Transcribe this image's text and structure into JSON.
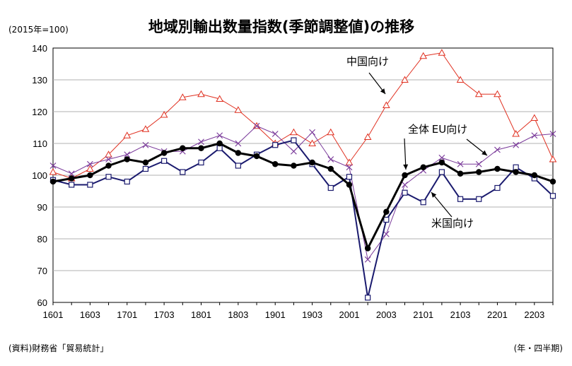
{
  "chart_data": {
    "type": "line",
    "title": "地域別輸出数量指数(季節調整値)の推移",
    "unit_note": "(2015年=100)",
    "source": "(資料)財務省「貿易統計」",
    "x_unit": "(年・四半期)",
    "ylim": [
      60,
      140
    ],
    "yticks": [
      60,
      70,
      80,
      90,
      100,
      110,
      120,
      130,
      140
    ],
    "grid": true,
    "categories": [
      "1601",
      "1602",
      "1603",
      "1604",
      "1701",
      "1702",
      "1703",
      "1704",
      "1801",
      "1802",
      "1803",
      "1804",
      "1901",
      "1902",
      "1903",
      "1904",
      "2001",
      "2002",
      "2003",
      "2004",
      "2101",
      "2102",
      "2103",
      "2104",
      "2201",
      "2202",
      "2203",
      "2204"
    ],
    "x_tick_labels": [
      "1601",
      "1603",
      "1701",
      "1703",
      "1801",
      "1803",
      "1901",
      "1903",
      "2001",
      "2003",
      "2101",
      "2103",
      "2201",
      "2203"
    ],
    "series": [
      {
        "name": "中国向け",
        "color": "#e03020",
        "marker": "triangle",
        "values": [
          101.0,
          99.0,
          102.0,
          106.5,
          112.5,
          114.5,
          119.0,
          124.5,
          125.5,
          124.0,
          120.5,
          115.5,
          110.0,
          113.5,
          110.0,
          113.5,
          104.0,
          112.0,
          122.0,
          130.0,
          137.5,
          138.5,
          130.0,
          125.5,
          125.5,
          113.0,
          118.0,
          105.0
        ]
      },
      {
        "name": "EU向け",
        "color": "#7a3a9a",
        "marker": "x",
        "values": [
          103.0,
          100.5,
          103.5,
          105.0,
          106.5,
          109.5,
          107.5,
          107.5,
          110.5,
          112.5,
          110.0,
          115.5,
          113.0,
          107.5,
          113.5,
          105.0,
          102.5,
          73.5,
          81.5,
          97.0,
          101.5,
          105.5,
          103.5,
          103.5,
          108.0,
          109.5,
          112.5,
          113.0
        ]
      },
      {
        "name": "米国向け",
        "color": "#1a1a6e",
        "marker": "square",
        "values": [
          98.5,
          97.0,
          97.0,
          99.5,
          98.0,
          102.0,
          104.5,
          101.0,
          104.0,
          108.5,
          103.0,
          106.5,
          109.5,
          111.0,
          103.5,
          96.0,
          99.5,
          61.5,
          86.0,
          94.5,
          91.5,
          101.0,
          92.5,
          92.5,
          96.0,
          102.5,
          99.0,
          93.5
        ]
      },
      {
        "name": "全体",
        "color": "#000000",
        "marker": "circle",
        "values": [
          98.0,
          99.0,
          100.0,
          103.0,
          105.0,
          104.0,
          107.0,
          108.5,
          108.5,
          110.0,
          107.0,
          106.0,
          103.5,
          103.0,
          104.0,
          102.0,
          97.0,
          77.0,
          88.5,
          100.0,
          102.5,
          104.0,
          100.5,
          101.0,
          102.0,
          101.0,
          100.0,
          98.0
        ]
      }
    ],
    "annotations": [
      "中国向け",
      "全体",
      "EU向け",
      "米国向け"
    ]
  }
}
